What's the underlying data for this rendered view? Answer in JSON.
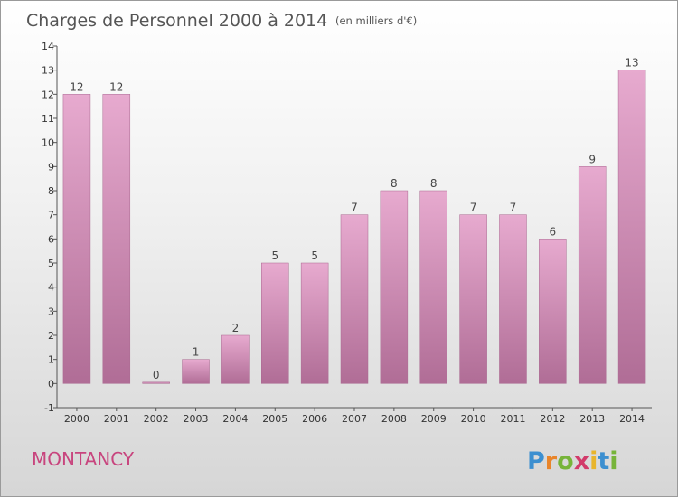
{
  "chart_data": {
    "type": "bar",
    "title": "Charges de Personnel 2000 à 2014",
    "unit_label": "(en milliers d'€)",
    "categories": [
      "2000",
      "2001",
      "2002",
      "2003",
      "2004",
      "2005",
      "2006",
      "2007",
      "2008",
      "2009",
      "2010",
      "2011",
      "2012",
      "2013",
      "2014"
    ],
    "values": [
      12,
      12,
      0,
      1,
      2,
      5,
      5,
      7,
      8,
      8,
      7,
      7,
      6,
      9,
      13
    ],
    "y_ticks": [
      "-1",
      "0",
      "1",
      "2",
      "3",
      "4",
      "5",
      "6",
      "7",
      "8",
      "9",
      "10",
      "11",
      "12",
      "13",
      "14"
    ],
    "ylim": [
      -1,
      14
    ],
    "grid": false,
    "bar_color_top": "#e7aacf",
    "bar_color_bottom": "#b06d96"
  },
  "commune": "MONTANCY",
  "logo": {
    "letters": [
      "P",
      "r",
      "o",
      "x",
      "i",
      "t",
      "i"
    ],
    "colors": [
      "#3c8fd0",
      "#e9852a",
      "#77b43a",
      "#d23a6a",
      "#e8b52c",
      "#3c8fd0",
      "#77b43a"
    ]
  }
}
